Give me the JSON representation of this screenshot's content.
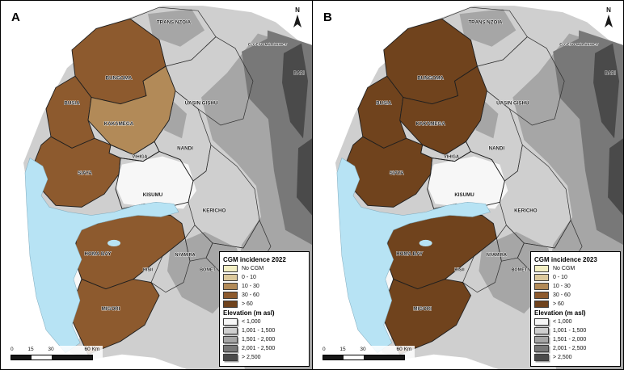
{
  "shared": {
    "north_label": "N",
    "scalebar": {
      "t0": "0",
      "t15": "15",
      "t30": "30",
      "t60": "60 Km"
    },
    "cgm_classes": [
      {
        "label": "No CGM",
        "color": "#f3efc3"
      },
      {
        "label": "0 - 10",
        "color": "#dcc99c"
      },
      {
        "label": "10 - 30",
        "color": "#b28a58"
      },
      {
        "label": "30 - 60",
        "color": "#8d5a2e"
      },
      {
        "label": "> 60",
        "color": "#70431d"
      }
    ],
    "elevation_legend_title": "Elevation (m asl)",
    "elevation_classes": [
      {
        "label": "< 1,000",
        "color": "#f7f7f7"
      },
      {
        "label": "1,001 - 1,500",
        "color": "#cfcfcf"
      },
      {
        "label": "1,501 - 2,000",
        "color": "#a6a6a6"
      },
      {
        "label": "2,001 - 2,500",
        "color": "#787878"
      },
      {
        "label": "> 2,500",
        "color": "#4a4a4a"
      }
    ],
    "lake_color": "#b7e3f4",
    "counties": {
      "trans_nzoia": "TRANS NZOIA",
      "elgeyo_marakwet": "ELGEYO-MARAKWET",
      "baringo": "BARI",
      "bungoma": "BUNGOMA",
      "busia": "BUSIA",
      "kakamega": "KAKAMEGA",
      "uasin_gishu": "UASIN GISHU",
      "nandi": "NANDI",
      "vihiga": "VIHIGA",
      "siaya": "SIAYA",
      "kisumu": "KISUMU",
      "kericho": "KERICHO",
      "homa_bay": "HOMA BAY",
      "nyamira": "NYAMIRA",
      "kisii": "KISII",
      "bomet": "BOMET",
      "migori": "MIGORI"
    }
  },
  "panels": [
    {
      "label": "A",
      "cgm_legend_title": "CGM incidence 2022",
      "county_incidence": {
        "bungoma": "30 - 60",
        "busia": "30 - 60",
        "kakamega": "10 - 30",
        "siaya": "30 - 60",
        "homa_bay": "30 - 60",
        "migori": "30 - 60"
      }
    },
    {
      "label": "B",
      "cgm_legend_title": "CGM incidence 2023",
      "county_incidence": {
        "bungoma": "> 60",
        "busia": "> 60",
        "kakamega": "> 60",
        "siaya": "> 60",
        "homa_bay": "> 60",
        "migori": "> 60"
      }
    }
  ]
}
